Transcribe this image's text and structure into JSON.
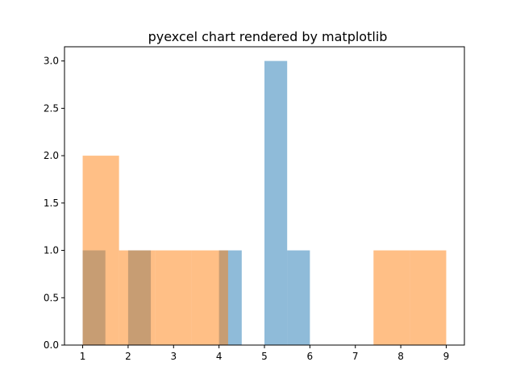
{
  "chart_data": {
    "type": "histogram",
    "title": "pyexcel chart rendered by matplotlib",
    "xlabel": "",
    "ylabel": "",
    "xlim": [
      0.6,
      9.4
    ],
    "ylim": [
      0,
      3.15
    ],
    "x_ticks": [
      1,
      2,
      3,
      4,
      5,
      6,
      7,
      8,
      9
    ],
    "x_tick_labels": [
      "1",
      "2",
      "3",
      "4",
      "5",
      "6",
      "7",
      "8",
      "9"
    ],
    "y_ticks": [
      0,
      0.5,
      1,
      1.5,
      2,
      2.5,
      3
    ],
    "y_tick_labels": [
      "0.0",
      "0.5",
      "1.0",
      "1.5",
      "2.0",
      "2.5",
      "3.0"
    ],
    "grid": false,
    "series": [
      {
        "color": "#1f77b4",
        "opacity": 0.5,
        "bins": [
          {
            "x0": 1.0,
            "x1": 1.5,
            "count": 1
          },
          {
            "x0": 1.5,
            "x1": 2.0,
            "count": 0
          },
          {
            "x0": 2.0,
            "x1": 2.5,
            "count": 1
          },
          {
            "x0": 2.5,
            "x1": 3.0,
            "count": 0
          },
          {
            "x0": 3.0,
            "x1": 3.5,
            "count": 0
          },
          {
            "x0": 3.5,
            "x1": 4.0,
            "count": 0
          },
          {
            "x0": 4.0,
            "x1": 4.5,
            "count": 1
          },
          {
            "x0": 4.5,
            "x1": 5.0,
            "count": 0
          },
          {
            "x0": 5.0,
            "x1": 5.5,
            "count": 3
          },
          {
            "x0": 5.5,
            "x1": 6.0,
            "count": 1
          }
        ]
      },
      {
        "color": "#ff7f0e",
        "opacity": 0.5,
        "bins": [
          {
            "x0": 1.0,
            "x1": 1.8,
            "count": 2
          },
          {
            "x0": 1.8,
            "x1": 2.6,
            "count": 1
          },
          {
            "x0": 2.6,
            "x1": 3.4,
            "count": 1
          },
          {
            "x0": 3.4,
            "x1": 4.2,
            "count": 1
          },
          {
            "x0": 4.2,
            "x1": 5.0,
            "count": 0
          },
          {
            "x0": 5.0,
            "x1": 5.8,
            "count": 0
          },
          {
            "x0": 5.8,
            "x1": 6.6,
            "count": 0
          },
          {
            "x0": 6.6,
            "x1": 7.4,
            "count": 0
          },
          {
            "x0": 7.4,
            "x1": 8.2,
            "count": 1
          },
          {
            "x0": 8.2,
            "x1": 9.0,
            "count": 1
          }
        ]
      }
    ]
  }
}
